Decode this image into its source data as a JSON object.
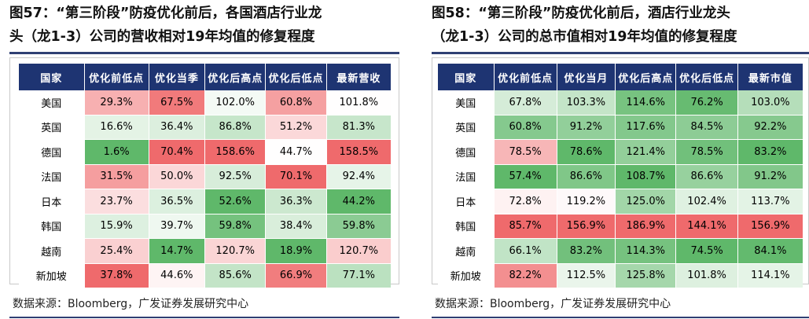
{
  "colors": {
    "header_bg": "#1e3472",
    "rule": "#2f3f73",
    "green_scale": "#5fb86a",
    "red_scale": "#ef6a6c"
  },
  "left": {
    "title_line1": "图57：“第三阶段”防疫优化前后，各国酒店行业龙",
    "title_line2": "头（龙1-3）公司的营收相对19年均值的修复程度",
    "headers": [
      "国家",
      "优化前低点",
      "优化当季",
      "优化后高点",
      "优化后低点",
      "最新营收"
    ],
    "rows": [
      {
        "country": "美国",
        "values": [
          "29.3%",
          "67.5%",
          "102.0%",
          "60.8%",
          "101.8%"
        ]
      },
      {
        "country": "英国",
        "values": [
          "16.6%",
          "36.4%",
          "86.8%",
          "51.2%",
          "81.3%"
        ]
      },
      {
        "country": "德国",
        "values": [
          "1.6%",
          "70.4%",
          "158.6%",
          "44.7%",
          "158.5%"
        ]
      },
      {
        "country": "法国",
        "values": [
          "31.5%",
          "50.0%",
          "92.5%",
          "70.1%",
          "92.4%"
        ]
      },
      {
        "country": "日本",
        "values": [
          "23.7%",
          "36.5%",
          "52.6%",
          "36.3%",
          "44.2%"
        ]
      },
      {
        "country": "韩国",
        "values": [
          "15.9%",
          "39.7%",
          "59.8%",
          "38.4%",
          "59.8%"
        ]
      },
      {
        "country": "越南",
        "values": [
          "25.4%",
          "14.7%",
          "120.7%",
          "18.9%",
          "120.7%"
        ]
      },
      {
        "country": "新加坡",
        "values": [
          "37.8%",
          "44.6%",
          "85.6%",
          "66.9%",
          "77.1%"
        ]
      }
    ],
    "source": "数据来源：Bloomberg，广发证券发展研究中心"
  },
  "right": {
    "title_line1": "图58：“第三阶段”防疫优化前后，酒店行业龙头",
    "title_line2": "（龙1-3）公司的总市值相对19年均值的修复程度",
    "headers": [
      "国家",
      "优化前低点",
      "优化当月",
      "优化后高点",
      "优化后低点",
      "最新市值"
    ],
    "rows": [
      {
        "country": "美国",
        "values": [
          "67.8%",
          "103.3%",
          "114.6%",
          "76.2%",
          "103.0%"
        ]
      },
      {
        "country": "英国",
        "values": [
          "60.8%",
          "91.2%",
          "117.6%",
          "84.5%",
          "92.2%"
        ]
      },
      {
        "country": "德国",
        "values": [
          "78.5%",
          "78.6%",
          "121.4%",
          "78.5%",
          "83.2%"
        ]
      },
      {
        "country": "法国",
        "values": [
          "57.4%",
          "86.6%",
          "108.7%",
          "86.6%",
          "91.2%"
        ]
      },
      {
        "country": "日本",
        "values": [
          "72.8%",
          "119.2%",
          "125.0%",
          "102.4%",
          "113.7%"
        ]
      },
      {
        "country": "韩国",
        "values": [
          "85.7%",
          "156.9%",
          "186.9%",
          "144.1%",
          "156.9%"
        ]
      },
      {
        "country": "越南",
        "values": [
          "66.1%",
          "83.2%",
          "114.3%",
          "74.5%",
          "84.1%"
        ]
      },
      {
        "country": "新加坡",
        "values": [
          "82.2%",
          "112.5%",
          "125.8%",
          "101.8%",
          "114.1%"
        ]
      }
    ],
    "source": "数据来源：Bloomberg，广发证券发展研究中心"
  }
}
